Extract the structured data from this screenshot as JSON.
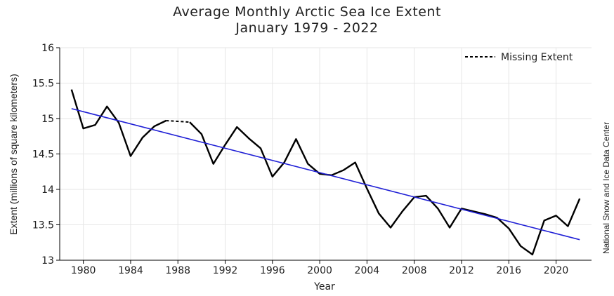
{
  "chart_data": {
    "type": "line",
    "title": "Average Monthly Arctic Sea Ice Extent",
    "subtitle": "January 1979 - 2022",
    "xlabel": "Year",
    "ylabel": "Extent (millions of square kilometers)",
    "credit": "National Snow and Ice Data Center",
    "xlim": [
      1978,
      2023
    ],
    "ylim": [
      13,
      16
    ],
    "x_ticks": [
      1980,
      1984,
      1988,
      1992,
      1996,
      2000,
      2004,
      2008,
      2012,
      2016,
      2020
    ],
    "y_ticks": [
      13,
      13.5,
      14,
      14.5,
      15,
      15.5,
      16
    ],
    "y_tick_labels": [
      "13",
      "13.5",
      "14",
      "14.5",
      "15",
      "15.5",
      "16"
    ],
    "grid": true,
    "legend": {
      "position": "top-right",
      "entries": [
        "Missing Extent"
      ]
    },
    "series": [
      {
        "style": "solid",
        "color": "#000000",
        "x": [
          1979,
          1980,
          1981,
          1982,
          1983,
          1984,
          1985,
          1986,
          1987
        ],
        "y": [
          15.41,
          14.86,
          14.91,
          15.17,
          14.94,
          14.47,
          14.73,
          14.89,
          14.97
        ]
      },
      {
        "name": "Missing Extent",
        "style": "dashed",
        "color": "#000000",
        "x": [
          1987,
          1988,
          1989
        ],
        "y": [
          14.97,
          14.96,
          14.95
        ]
      },
      {
        "style": "solid",
        "color": "#000000",
        "x": [
          1989,
          1990,
          1991,
          1992,
          1993,
          1994,
          1995,
          1996,
          1997,
          1998,
          1999,
          2000,
          2001,
          2002,
          2003,
          2004,
          2005,
          2006,
          2007,
          2008,
          2009,
          2010,
          2011,
          2012,
          2013,
          2014,
          2015,
          2016,
          2017,
          2018,
          2019,
          2020,
          2021,
          2022
        ],
        "y": [
          14.95,
          14.78,
          14.36,
          14.63,
          14.88,
          14.72,
          14.58,
          14.18,
          14.38,
          14.71,
          14.36,
          14.22,
          14.2,
          14.27,
          14.38,
          14.01,
          13.66,
          13.46,
          13.69,
          13.89,
          13.91,
          13.73,
          13.46,
          13.73,
          13.69,
          13.65,
          13.6,
          13.45,
          13.2,
          13.08,
          13.56,
          13.63,
          13.48,
          13.87
        ]
      }
    ],
    "trend": {
      "color": "#1f1fd6",
      "x": [
        1979,
        2022
      ],
      "y": [
        15.14,
        13.29
      ]
    }
  }
}
